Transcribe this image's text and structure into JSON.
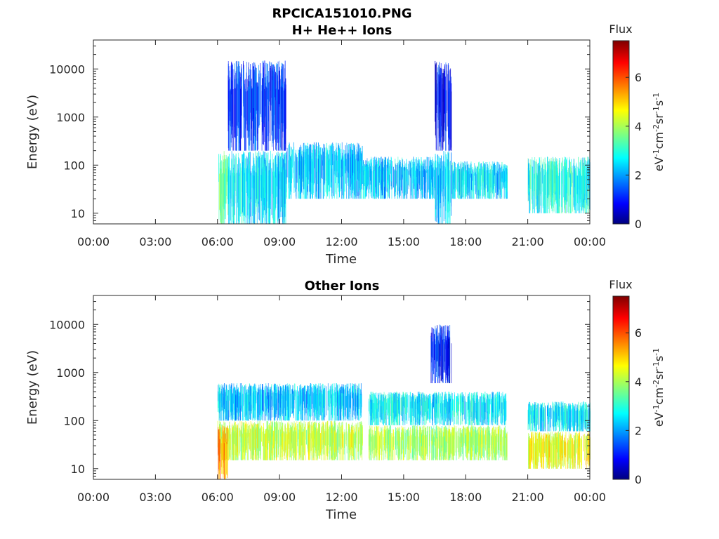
{
  "figure": {
    "title_line1": "RPCICA151010.PNG"
  },
  "colormap": {
    "name": "jet",
    "stops": [
      "#00007f",
      "#0000ff",
      "#00ffff",
      "#ffff00",
      "#ff0000",
      "#7f0000"
    ]
  },
  "chart_data": [
    {
      "type": "heatmap",
      "title": "H+ He++ Ions",
      "xlabel": "Time",
      "ylabel": "Energy (eV)",
      "x_ticks": [
        "00:00",
        "03:00",
        "06:00",
        "09:00",
        "12:00",
        "15:00",
        "18:00",
        "21:00",
        "00:00"
      ],
      "xlim_hours": [
        0,
        24
      ],
      "y_scale": "log",
      "ylim": [
        6,
        40000
      ],
      "y_ticks": [
        "10",
        "100",
        "1000",
        "10000"
      ],
      "y_tick_values": [
        10,
        100,
        1000,
        10000
      ],
      "colorbar": {
        "title": "Flux",
        "label": "eV-1cm-2sr-1s-1",
        "ticks": [
          "0",
          "2",
          "4",
          "6"
        ],
        "range": [
          0,
          7.5
        ]
      },
      "regions": [
        {
          "t_start": 6.0,
          "t_end": 6.5,
          "e_min": 6,
          "e_max": 200,
          "flux": 3.5
        },
        {
          "t_start": 6.5,
          "t_end": 9.3,
          "e_min": 200,
          "e_max": 15000,
          "flux": 1.3
        },
        {
          "t_start": 6.5,
          "t_end": 9.3,
          "e_min": 6,
          "e_max": 200,
          "flux": 2.5
        },
        {
          "t_start": 9.3,
          "t_end": 13.0,
          "e_min": 20,
          "e_max": 300,
          "flux": 2.3
        },
        {
          "t_start": 13.0,
          "t_end": 16.5,
          "e_min": 20,
          "e_max": 150,
          "flux": 2.3
        },
        {
          "t_start": 16.5,
          "t_end": 17.3,
          "e_min": 200,
          "e_max": 15000,
          "flux": 1.0
        },
        {
          "t_start": 16.5,
          "t_end": 17.3,
          "e_min": 6,
          "e_max": 200,
          "flux": 2.3
        },
        {
          "t_start": 17.3,
          "t_end": 20.0,
          "e_min": 20,
          "e_max": 120,
          "flux": 2.5
        },
        {
          "t_start": 21.0,
          "t_end": 24.0,
          "e_min": 10,
          "e_max": 150,
          "flux": 2.8
        }
      ]
    },
    {
      "type": "heatmap",
      "title": "Other Ions",
      "xlabel": "Time",
      "ylabel": "Energy (eV)",
      "x_ticks": [
        "00:00",
        "03:00",
        "06:00",
        "09:00",
        "12:00",
        "15:00",
        "18:00",
        "21:00",
        "00:00"
      ],
      "xlim_hours": [
        0,
        24
      ],
      "y_scale": "log",
      "ylim": [
        6,
        40000
      ],
      "y_ticks": [
        "10",
        "100",
        "1000",
        "10000"
      ],
      "y_tick_values": [
        10,
        100,
        1000,
        10000
      ],
      "colorbar": {
        "title": "Flux",
        "label": "eV-1cm-2sr-1s-1",
        "ticks": [
          "0",
          "2",
          "4",
          "6"
        ],
        "range": [
          0,
          7.5
        ]
      },
      "regions": [
        {
          "t_start": 6.0,
          "t_end": 13.0,
          "e_min": 100,
          "e_max": 600,
          "flux": 2.3
        },
        {
          "t_start": 6.0,
          "t_end": 13.0,
          "e_min": 15,
          "e_max": 100,
          "flux": 4.2
        },
        {
          "t_start": 6.0,
          "t_end": 6.5,
          "e_min": 6,
          "e_max": 80,
          "flux": 5.5
        },
        {
          "t_start": 13.3,
          "t_end": 20.0,
          "e_min": 80,
          "e_max": 400,
          "flux": 2.6
        },
        {
          "t_start": 13.3,
          "t_end": 20.0,
          "e_min": 15,
          "e_max": 80,
          "flux": 4.0
        },
        {
          "t_start": 16.3,
          "t_end": 17.3,
          "e_min": 600,
          "e_max": 10000,
          "flux": 1.0
        },
        {
          "t_start": 21.0,
          "t_end": 24.0,
          "e_min": 60,
          "e_max": 250,
          "flux": 2.6
        },
        {
          "t_start": 21.0,
          "t_end": 24.0,
          "e_min": 10,
          "e_max": 60,
          "flux": 4.5
        }
      ]
    }
  ]
}
